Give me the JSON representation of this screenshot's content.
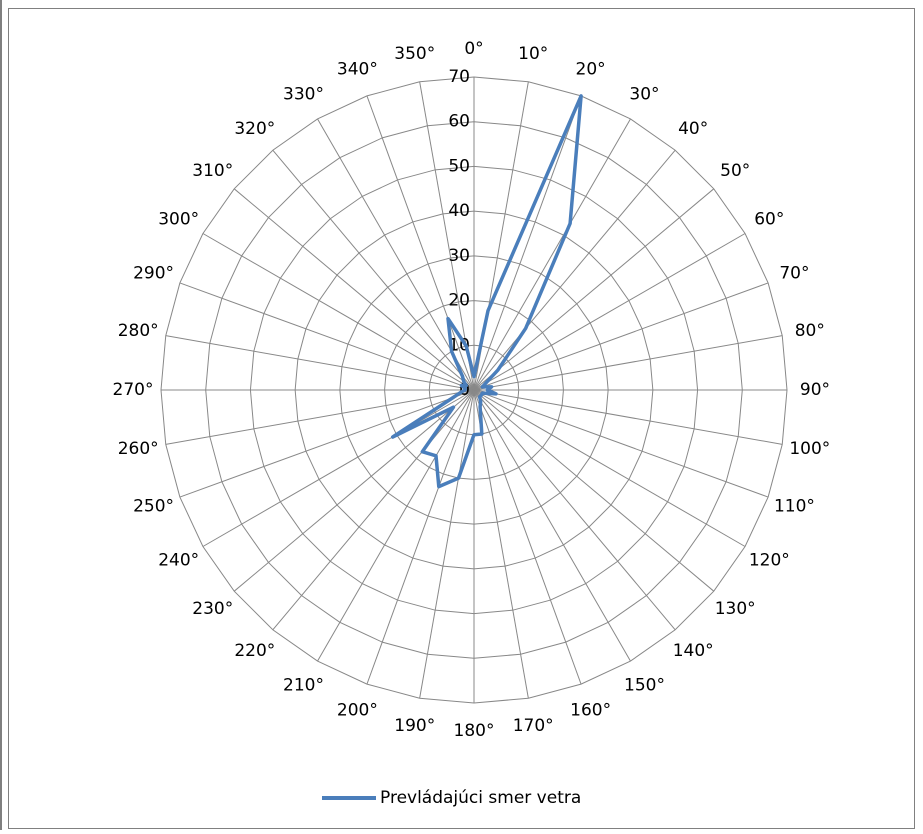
{
  "chart_data": {
    "type": "radar",
    "categories": [
      "0°",
      "10°",
      "20°",
      "30°",
      "40°",
      "50°",
      "60°",
      "70°",
      "80°",
      "90°",
      "100°",
      "110°",
      "120°",
      "130°",
      "140°",
      "150°",
      "160°",
      "170°",
      "180°",
      "190°",
      "200°",
      "210°",
      "220°",
      "230°",
      "240°",
      "250°",
      "260°",
      "270°",
      "280°",
      "290°",
      "300°",
      "310°",
      "320°",
      "330°",
      "340°",
      "350°"
    ],
    "series": [
      {
        "name": "Prevládajúci smer vetra",
        "color": "#4a7ebb",
        "values": [
          3,
          18,
          70,
          43,
          18,
          7,
          3,
          2,
          4,
          3,
          5,
          2,
          2,
          2,
          2,
          3,
          4,
          10,
          10,
          20,
          23,
          17,
          18,
          6,
          21,
          5,
          3,
          2,
          2,
          3,
          2,
          3,
          4,
          10,
          17,
          10
        ]
      }
    ],
    "ylim": [
      0,
      70
    ],
    "yticks": [
      0,
      10,
      20,
      30,
      40,
      50,
      60,
      70
    ],
    "grid": true,
    "legend": "bottom"
  }
}
